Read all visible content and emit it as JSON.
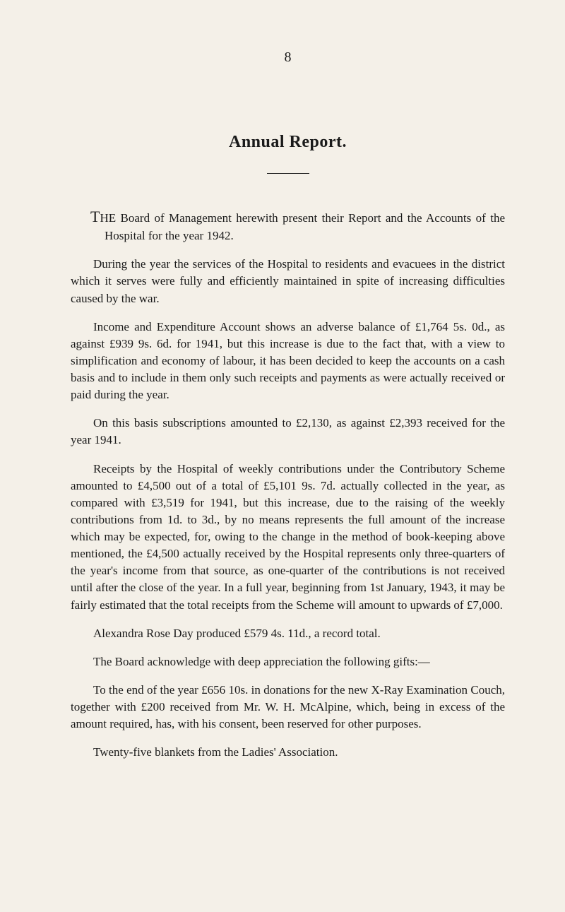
{
  "page_number": "8",
  "title": "Annual Report.",
  "paragraphs": {
    "p1": "HE Board of Management herewith present their Report and the Accounts of the Hospital for the year 1942.",
    "p1_dropcap": "T",
    "p2": "During the year the services of the Hospital to residents and evacuees in the district which it serves were fully and efficiently maintained in spite of increasing difficulties caused by the war.",
    "p3": "Income and Expenditure Account shows an adverse balance of £1,764 5s. 0d., as against £939 9s. 6d. for 1941, but this increase is due to the fact that, with a view to simplification and economy of labour, it has been decided to keep the accounts on a cash basis and to include in them only such receipts and payments as were actually received or paid during the year.",
    "p4": "On this basis subscriptions amounted to £2,130, as against £2,393 received for the year 1941.",
    "p5": "Receipts by the Hospital of weekly contributions under the Contributory Scheme amounted to £4,500 out of a total of £5,101 9s. 7d. actually collected in the year, as compared with £3,519 for 1941, but this increase, due to the raising of the weekly contributions from 1d. to 3d., by no means represents the full amount of the increase which may be expected, for, owing to the change in the method of book-keeping above mentioned, the £4,500 actually received by the Hospital represents only three-quarters of the year's income from that source, as one-quarter of the contributions is not received until after the close of the year. In a full year, beginning from 1st January, 1943, it may be fairly estimated that the total receipts from the Scheme will amount to upwards of £7,000.",
    "p6": "Alexandra Rose Day produced £579 4s. 11d., a record total.",
    "p7": "The Board acknowledge with deep appreciation the following gifts:—",
    "p8": "To the end of the year £656 10s. in donations for the new X-Ray Examination Couch, together with £200 received from Mr. W. H. McAlpine, which, being in excess of the amount required, has, with his consent, been reserved for other purposes.",
    "p9": "Twenty-five blankets from the Ladies' Association."
  },
  "colors": {
    "background": "#f4f0e8",
    "text": "#1a1a1a"
  },
  "typography": {
    "body_fontsize": 17,
    "title_fontsize": 24,
    "font_family": "Georgia, Times New Roman, serif"
  }
}
